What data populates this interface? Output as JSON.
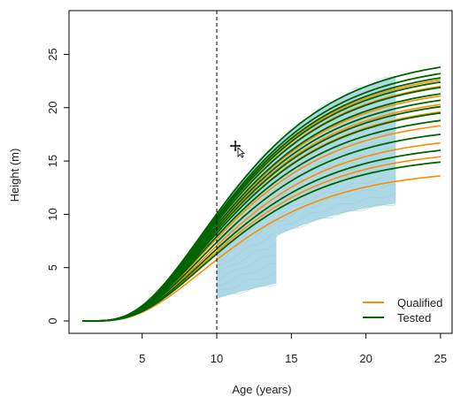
{
  "chart_data": {
    "type": "line",
    "xlabel": "Age (years)",
    "ylabel": "Height (m)",
    "xlim": [
      0,
      25
    ],
    "ylim": [
      -1,
      25
    ],
    "x_ticks": [
      "5",
      "10",
      "15",
      "20",
      "25"
    ],
    "y_ticks": [
      "0",
      "5",
      "10",
      "15",
      "20",
      "25"
    ],
    "reference_line_x": 10,
    "legend": {
      "position": "bottom-right",
      "entries": [
        {
          "label": "Qualified",
          "color": "#ff8c00"
        },
        {
          "label": "Tested",
          "color": "#006400"
        }
      ]
    },
    "observed_band": {
      "color": "#add8e6",
      "segments": [
        {
          "x_start": 10,
          "x_end": 14,
          "y_upper": 16.7,
          "y_lower": 3.5
        },
        {
          "x_start": 14,
          "x_end": 22,
          "y_upper": 23.0,
          "y_lower": 11.0
        }
      ]
    },
    "tested_series_heights_at_age_25": [
      23.8,
      23.2,
      22.8,
      22.4,
      21.9,
      21.3,
      20.7,
      20.1,
      19.5,
      18.8,
      17.5,
      16.0,
      14.9
    ],
    "qualified_series_heights_at_age_25": [
      23.2,
      22.6,
      22.0,
      21.1,
      20.3,
      19.6,
      18.3,
      16.7,
      15.4,
      13.6
    ]
  }
}
